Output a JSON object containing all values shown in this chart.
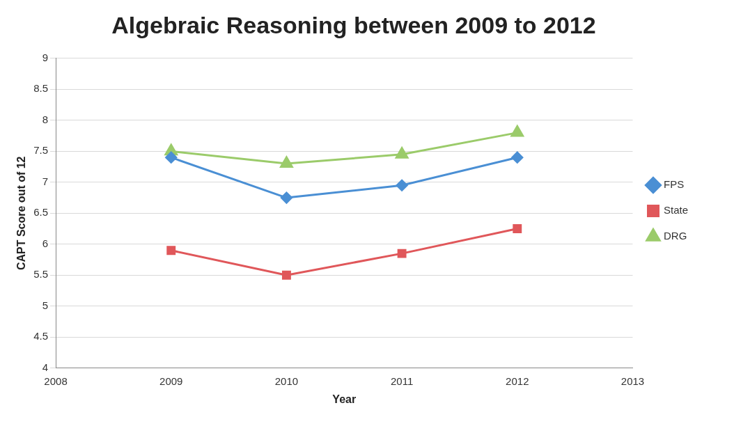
{
  "chart_data": {
    "type": "line",
    "title": "Algebraic Reasoning between 2009 to 2012",
    "xlabel": "Year",
    "ylabel": "CAPT Score out of 12",
    "x": [
      2009,
      2010,
      2011,
      2012
    ],
    "series": [
      {
        "name": "FPS",
        "color": "#4a8fd4",
        "marker": "diamond",
        "values": [
          7.4,
          6.75,
          6.95,
          7.4
        ]
      },
      {
        "name": "State",
        "color": "#e0575a",
        "marker": "square",
        "values": [
          5.9,
          5.5,
          5.85,
          6.25
        ]
      },
      {
        "name": "DRG",
        "color": "#9bcb6a",
        "marker": "triangle",
        "values": [
          7.5,
          7.3,
          7.45,
          7.8
        ]
      }
    ],
    "xlim": [
      2008,
      2013
    ],
    "xticks": [
      2008,
      2009,
      2010,
      2011,
      2012,
      2013
    ],
    "ylim": [
      4,
      9
    ],
    "yticks": [
      4,
      4.5,
      5,
      5.5,
      6,
      6.5,
      7,
      7.5,
      8,
      8.5,
      9
    ],
    "grid": "y",
    "legend": "right",
    "line_style": "solid"
  }
}
